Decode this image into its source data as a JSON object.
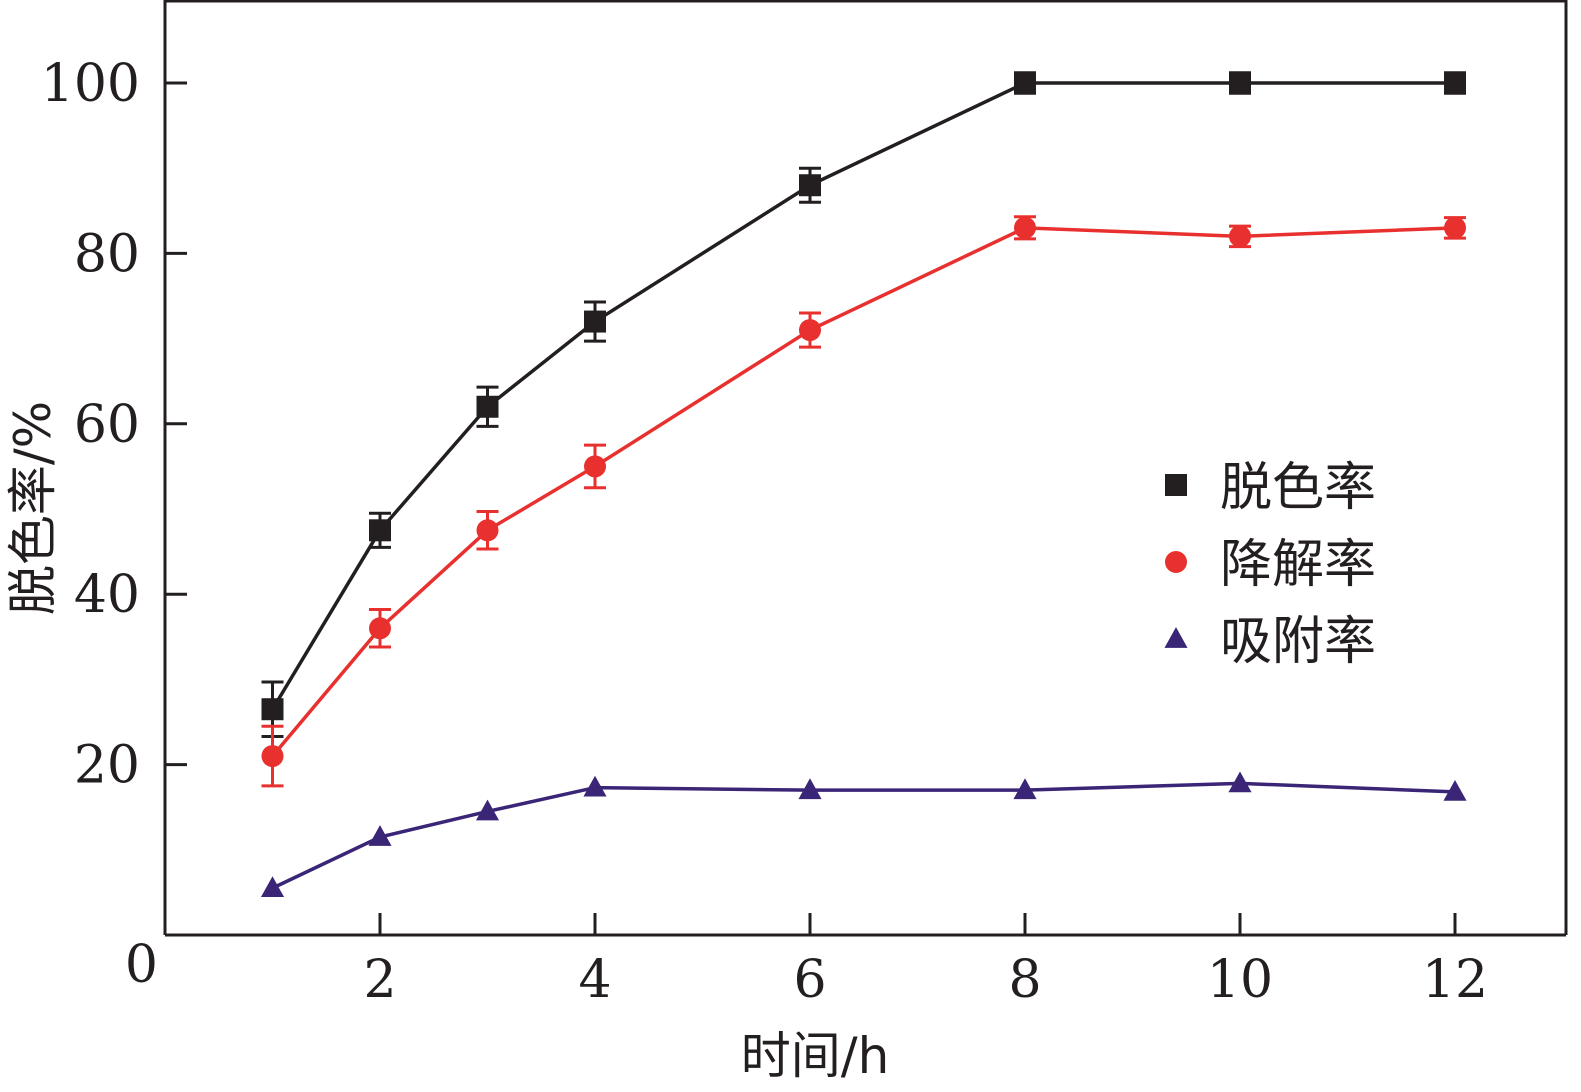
{
  "chart_data": {
    "type": "line",
    "xlabel": "时间/h",
    "ylabel": "脱色率/%",
    "xlim": [
      0,
      13
    ],
    "ylim": [
      0,
      110
    ],
    "x_ticks": [
      2,
      4,
      6,
      8,
      10,
      12
    ],
    "y_ticks": [
      0,
      20,
      40,
      60,
      80,
      100
    ],
    "x": [
      1,
      2,
      3,
      4,
      6,
      8,
      10,
      12
    ],
    "legend_position": "right",
    "grid": false,
    "series": [
      {
        "name": "脱色率",
        "marker": "square",
        "color": "#231f20",
        "values": [
          26.5,
          47.5,
          62,
          72,
          88,
          100,
          100,
          100
        ],
        "errors": [
          3.2,
          2.0,
          2.3,
          2.3,
          2.0,
          1.2,
          1.2,
          1.2
        ]
      },
      {
        "name": "降解率",
        "marker": "circle",
        "color": "#e8302e",
        "values": [
          21,
          36,
          47.5,
          55,
          71,
          83,
          82,
          83
        ],
        "errors": [
          3.5,
          2.2,
          2.2,
          2.5,
          2.0,
          1.3,
          1.2,
          1.2
        ]
      },
      {
        "name": "吸附率",
        "marker": "triangle",
        "color": "#3a2577",
        "values": [
          5.5,
          11.5,
          14.5,
          17.3,
          17.0,
          17.0,
          17.8,
          16.8
        ],
        "errors": []
      }
    ]
  }
}
